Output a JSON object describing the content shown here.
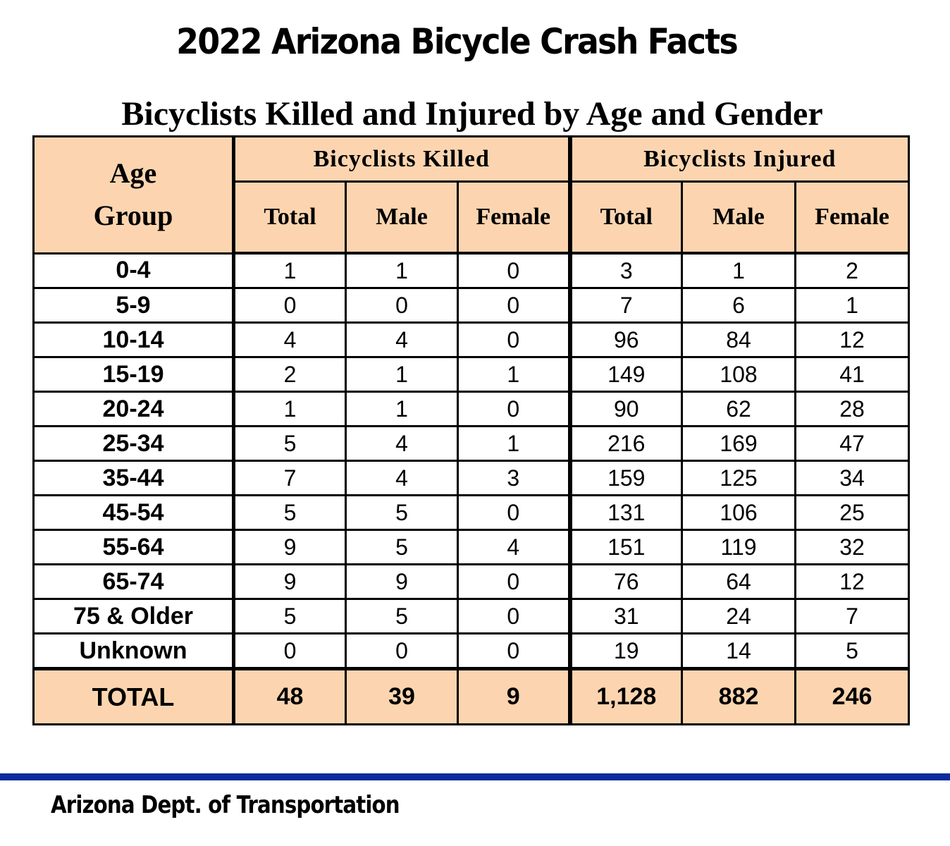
{
  "title": "2022 Arizona Bicycle Crash Facts",
  "subtitle": "Bicyclists Killed and Injured by Age and Gender",
  "table": {
    "age_header_line1": "Age",
    "age_header_line2": "Group",
    "killed_header": "Bicyclists Killed",
    "injured_header": "Bicyclists Injured",
    "sub_headers": [
      "Total",
      "Male",
      "Female",
      "Total",
      "Male",
      "Female"
    ],
    "rows": [
      {
        "age": "0-4",
        "values": [
          "1",
          "1",
          "0",
          "3",
          "1",
          "2"
        ]
      },
      {
        "age": "5-9",
        "values": [
          "0",
          "0",
          "0",
          "7",
          "6",
          "1"
        ]
      },
      {
        "age": "10-14",
        "values": [
          "4",
          "4",
          "0",
          "96",
          "84",
          "12"
        ]
      },
      {
        "age": "15-19",
        "values": [
          "2",
          "1",
          "1",
          "149",
          "108",
          "41"
        ]
      },
      {
        "age": "20-24",
        "values": [
          "1",
          "1",
          "0",
          "90",
          "62",
          "28"
        ]
      },
      {
        "age": "25-34",
        "values": [
          "5",
          "4",
          "1",
          "216",
          "169",
          "47"
        ]
      },
      {
        "age": "35-44",
        "values": [
          "7",
          "4",
          "3",
          "159",
          "125",
          "34"
        ]
      },
      {
        "age": "45-54",
        "values": [
          "5",
          "5",
          "0",
          "131",
          "106",
          "25"
        ]
      },
      {
        "age": "55-64",
        "values": [
          "9",
          "5",
          "4",
          "151",
          "119",
          "32"
        ]
      },
      {
        "age": "65-74",
        "values": [
          "9",
          "9",
          "0",
          "76",
          "64",
          "12"
        ]
      },
      {
        "age": "75 & Older",
        "values": [
          "5",
          "5",
          "0",
          "31",
          "24",
          "7"
        ]
      },
      {
        "age": "Unknown",
        "values": [
          "0",
          "0",
          "0",
          "19",
          "14",
          "5"
        ]
      }
    ],
    "total": {
      "age": "TOTAL",
      "values": [
        "48",
        "39",
        "9",
        "1,128",
        "882",
        "246"
      ]
    }
  },
  "footer": "Arizona Dept. of Transportation",
  "colors": {
    "header_fill": "#fcd5b0",
    "footer_rule": "#0b2c9e"
  }
}
